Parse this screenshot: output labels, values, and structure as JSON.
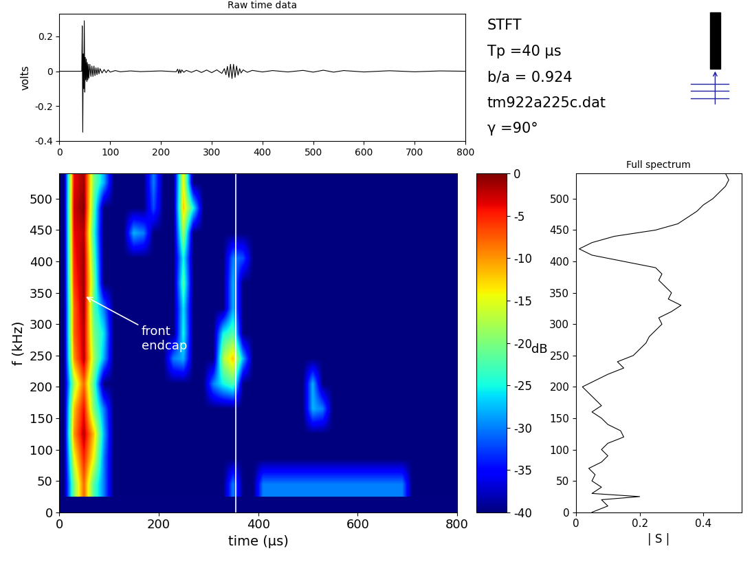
{
  "chart_data": [
    {
      "type": "line",
      "title": "Raw time data",
      "y_label": "volts",
      "color": "#000000",
      "x": [
        0,
        44,
        45,
        46,
        47,
        48,
        49,
        50,
        51,
        52,
        53,
        54,
        55,
        56,
        57,
        58,
        60,
        62,
        64,
        66,
        68,
        70,
        72,
        74,
        76,
        78,
        80,
        84,
        88,
        92,
        96,
        100,
        110,
        120,
        140,
        160,
        200,
        230,
        233,
        235,
        237,
        239,
        241,
        245,
        250,
        260,
        270,
        280,
        290,
        300,
        310,
        320,
        325,
        328,
        331,
        334,
        337,
        340,
        343,
        346,
        349,
        352,
        355,
        358,
        362,
        370,
        380,
        400,
        420,
        450,
        480,
        500,
        520,
        540,
        560,
        600,
        650,
        700,
        750,
        800
      ],
      "values": [
        0,
        0,
        0.26,
        -0.35,
        0.1,
        -0.1,
        0.29,
        -0.12,
        0.08,
        -0.05,
        0.07,
        -0.06,
        0.05,
        -0.05,
        0.04,
        -0.04,
        0.04,
        -0.03,
        0.03,
        -0.03,
        0.03,
        -0.025,
        0.02,
        -0.02,
        0.02,
        -0.015,
        0.015,
        -0.01,
        0.01,
        -0.008,
        0.008,
        -0.005,
        0.004,
        -0.003,
        0.002,
        -0.002,
        0.002,
        -0.003,
        0.012,
        -0.012,
        0.01,
        -0.01,
        0.008,
        -0.006,
        0.005,
        -0.006,
        0.006,
        -0.007,
        0.007,
        -0.008,
        0.008,
        -0.012,
        0.015,
        -0.02,
        0.028,
        -0.035,
        0.04,
        -0.042,
        0.04,
        -0.035,
        0.03,
        -0.022,
        0.015,
        -0.01,
        0.008,
        -0.006,
        0.005,
        -0.004,
        0.004,
        -0.004,
        0.005,
        -0.005,
        0.006,
        -0.005,
        0.004,
        -0.004,
        0.003,
        -0.003,
        0.002,
        0
      ],
      "xlim": [
        0,
        800
      ],
      "xticks": [
        0,
        100,
        200,
        300,
        400,
        500,
        600,
        700,
        800
      ],
      "ylim": [
        -0.4,
        0.33
      ],
      "yticks": [
        -0.4,
        -0.2,
        0,
        0.2
      ]
    },
    {
      "type": "heatmap",
      "x_label": "time (µs)",
      "y_label": "f (kHz)",
      "text_block": [
        "STFT",
        "Tp =40 µs",
        "b/a = 0.924",
        "tm922a225c.dat",
        "γ =90°"
      ],
      "xlim": [
        0,
        800
      ],
      "xticks": [
        0,
        200,
        400,
        600,
        800
      ],
      "ylim": [
        0,
        540
      ],
      "yticks": [
        0,
        50,
        100,
        150,
        200,
        250,
        300,
        350,
        400,
        450,
        500
      ],
      "cursor_time": 355,
      "annotations": [
        {
          "text": "front\nendcap",
          "x": 50,
          "y": 345
        }
      ],
      "colorbar": {
        "range": [
          -40,
          0
        ],
        "ticks": [
          0,
          -5,
          -10,
          -15,
          -20,
          -25,
          -30,
          -35,
          -40
        ],
        "label": "dB"
      },
      "x_edges": [
        0,
        20,
        40,
        60,
        80,
        100,
        120,
        140,
        160,
        180,
        200,
        220,
        240,
        260,
        280,
        300,
        320,
        340,
        360,
        380,
        400,
        420,
        440,
        460,
        480,
        500,
        520,
        540,
        560,
        580,
        600,
        620,
        640,
        660,
        680,
        700,
        720,
        740,
        760,
        780,
        800
      ],
      "y_edges": [
        25,
        65,
        105,
        145,
        185,
        225,
        265,
        305,
        345,
        385,
        425,
        465,
        505,
        545
      ],
      "cells": [
        [
          -40,
          -20,
          -8,
          -22,
          -30,
          -40,
          -40,
          -40,
          -40,
          -40,
          -40,
          -40,
          -40,
          -40,
          -40,
          -40,
          -40,
          -30,
          -40,
          -40,
          -30,
          -30,
          -30,
          -30,
          -30,
          -30,
          -30,
          -30,
          -30,
          -30,
          -30,
          -30,
          -30,
          -30,
          -30,
          -40,
          -40,
          -40,
          -40,
          -40
        ],
        [
          -40,
          -15,
          -5,
          -15,
          -30,
          -40,
          -40,
          -40,
          -40,
          -40,
          -40,
          -40,
          -40,
          -40,
          -40,
          -40,
          -40,
          -40,
          -40,
          -40,
          -40,
          -40,
          -40,
          -40,
          -40,
          -40,
          -40,
          -40,
          -40,
          -40,
          -40,
          -40,
          -40,
          -40,
          -40,
          -40,
          -40,
          -40,
          -40,
          -40
        ],
        [
          -40,
          -10,
          -2,
          -12,
          -28,
          -40,
          -40,
          -40,
          -40,
          -40,
          -40,
          -40,
          -40,
          -40,
          -40,
          -40,
          -40,
          -40,
          -40,
          -40,
          -40,
          -40,
          -40,
          -40,
          -40,
          -40,
          -40,
          -40,
          -40,
          -40,
          -40,
          -40,
          -40,
          -40,
          -40,
          -40,
          -40,
          -40,
          -40,
          -40
        ],
        [
          -40,
          -12,
          -4,
          -20,
          -30,
          -40,
          -40,
          -40,
          -40,
          -40,
          -40,
          -40,
          -40,
          -40,
          -40,
          -40,
          -40,
          -40,
          -40,
          -40,
          -40,
          -40,
          -40,
          -40,
          -40,
          -28,
          -30,
          -40,
          -40,
          -40,
          -40,
          -40,
          -40,
          -40,
          -40,
          -40,
          -40,
          -40,
          -40,
          -40
        ],
        [
          -40,
          -18,
          -8,
          -22,
          -40,
          -40,
          -40,
          -40,
          -40,
          -40,
          -40,
          -40,
          -40,
          -40,
          -40,
          -30,
          -25,
          -22,
          -40,
          -40,
          -40,
          -40,
          -40,
          -40,
          -40,
          -28,
          -40,
          -40,
          -40,
          -40,
          -40,
          -40,
          -40,
          -40,
          -40,
          -40,
          -40,
          -40,
          -40,
          -40
        ],
        [
          -40,
          -10,
          -2,
          -18,
          -28,
          -40,
          -40,
          -40,
          -40,
          -40,
          -40,
          -30,
          -28,
          -40,
          -40,
          -40,
          -18,
          -12,
          -28,
          -40,
          -40,
          -40,
          -40,
          -40,
          -40,
          -40,
          -40,
          -40,
          -40,
          -40,
          -40,
          -40,
          -40,
          -40,
          -40,
          -40,
          -40,
          -40,
          -40,
          -40
        ],
        [
          -40,
          -8,
          -2,
          -20,
          -26,
          -40,
          -40,
          -40,
          -40,
          -40,
          -40,
          -40,
          -25,
          -40,
          -40,
          -40,
          -25,
          -22,
          -40,
          -40,
          -40,
          -40,
          -40,
          -40,
          -40,
          -40,
          -40,
          -40,
          -40,
          -40,
          -40,
          -40,
          -40,
          -40,
          -40,
          -40,
          -40,
          -40,
          -40,
          -40
        ],
        [
          -40,
          -8,
          -1,
          -22,
          -30,
          -40,
          -40,
          -40,
          -40,
          -40,
          -40,
          -40,
          -26,
          -40,
          -40,
          -40,
          -40,
          -28,
          -40,
          -40,
          -40,
          -40,
          -40,
          -40,
          -40,
          -40,
          -40,
          -40,
          -40,
          -40,
          -40,
          -40,
          -40,
          -40,
          -40,
          -40,
          -40,
          -40,
          -40,
          -40
        ],
        [
          -40,
          -6,
          -1,
          -20,
          -40,
          -40,
          -40,
          -40,
          -40,
          -40,
          -40,
          -40,
          -22,
          -40,
          -40,
          -40,
          -40,
          -28,
          -40,
          -40,
          -40,
          -40,
          -40,
          -40,
          -40,
          -40,
          -40,
          -40,
          -40,
          -40,
          -40,
          -40,
          -40,
          -40,
          -40,
          -40,
          -40,
          -40,
          -40,
          -40
        ],
        [
          -40,
          -5,
          -1,
          -22,
          -40,
          -40,
          -40,
          -40,
          -40,
          -40,
          -40,
          -40,
          -25,
          -40,
          -40,
          -40,
          -40,
          -30,
          -32,
          -40,
          -40,
          -40,
          -40,
          -40,
          -40,
          -40,
          -40,
          -40,
          -40,
          -40,
          -40,
          -40,
          -40,
          -40,
          -40,
          -40,
          -40,
          -40,
          -40,
          -40
        ],
        [
          -40,
          -4,
          -2,
          -24,
          -40,
          -40,
          -40,
          -28,
          -30,
          -40,
          -40,
          -40,
          -18,
          -40,
          -40,
          -40,
          -40,
          -40,
          -40,
          -40,
          -40,
          -40,
          -40,
          -40,
          -40,
          -40,
          -40,
          -40,
          -40,
          -40,
          -40,
          -40,
          -40,
          -40,
          -40,
          -40,
          -40,
          -40,
          -40,
          -40
        ],
        [
          -40,
          -3,
          0,
          -22,
          -40,
          -40,
          -40,
          -40,
          -40,
          -32,
          -40,
          -40,
          -12,
          -25,
          -40,
          -40,
          -40,
          -40,
          -40,
          -40,
          -40,
          -40,
          -40,
          -40,
          -40,
          -40,
          -40,
          -40,
          -40,
          -40,
          -40,
          -40,
          -40,
          -40,
          -40,
          -40,
          -40,
          -40,
          -40,
          -40
        ],
        [
          -40,
          -4,
          -1,
          -20,
          -28,
          -40,
          -40,
          -40,
          -40,
          -30,
          -40,
          -40,
          -14,
          -40,
          -40,
          -40,
          -40,
          -40,
          -40,
          -40,
          -40,
          -40,
          -40,
          -40,
          -40,
          -40,
          -40,
          -40,
          -40,
          -40,
          -40,
          -40,
          -40,
          -40,
          -40,
          -40,
          -40,
          -40,
          -40,
          -40
        ]
      ]
    },
    {
      "type": "line",
      "title": "Full spectrum",
      "x_label": "| S |",
      "color": "#000000",
      "y": [
        0,
        10,
        20,
        25,
        30,
        40,
        50,
        60,
        70,
        80,
        90,
        100,
        110,
        120,
        130,
        140,
        150,
        160,
        170,
        180,
        190,
        200,
        210,
        220,
        230,
        240,
        250,
        260,
        270,
        280,
        290,
        300,
        310,
        320,
        330,
        340,
        350,
        360,
        370,
        380,
        390,
        400,
        410,
        420,
        430,
        440,
        450,
        460,
        470,
        480,
        490,
        500,
        510,
        520,
        530,
        540
      ],
      "x": [
        0.05,
        0.1,
        0.08,
        0.2,
        0.05,
        0.08,
        0.05,
        0.06,
        0.04,
        0.08,
        0.1,
        0.08,
        0.1,
        0.15,
        0.14,
        0.1,
        0.08,
        0.05,
        0.08,
        0.06,
        0.04,
        0.02,
        0.06,
        0.1,
        0.15,
        0.13,
        0.18,
        0.2,
        0.22,
        0.23,
        0.25,
        0.27,
        0.26,
        0.3,
        0.33,
        0.29,
        0.3,
        0.28,
        0.26,
        0.27,
        0.25,
        0.15,
        0.05,
        0.01,
        0.05,
        0.12,
        0.25,
        0.32,
        0.35,
        0.38,
        0.4,
        0.43,
        0.45,
        0.47,
        0.48,
        0.47
      ],
      "xlim": [
        0,
        0.52
      ],
      "xticks": [
        0,
        0.2,
        0.4
      ],
      "ylim": [
        0,
        540
      ],
      "yticks": [
        0,
        50,
        100,
        150,
        200,
        250,
        300,
        350,
        400,
        450,
        500
      ]
    }
  ]
}
